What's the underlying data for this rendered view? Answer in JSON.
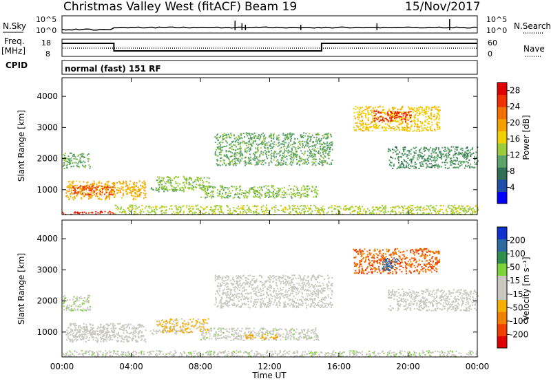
{
  "header": {
    "station": "Christmas Valley West (fitACF)",
    "beam": "Beam 19",
    "date": "15/Nov/2017"
  },
  "left_labels": {
    "nsky": "N.Sky",
    "freq_1": "Freq.",
    "freq_2": "[MHz]",
    "cpid": "CPID"
  },
  "right_labels": {
    "nsearch": "N.Search",
    "nave": "Nave"
  },
  "cpid_value": "normal (fast) 151 RF",
  "noise_ticks": {
    "left_top": "10^5",
    "left_bottom": "10^0",
    "right_top": "10^5",
    "right_bottom": "10^0"
  },
  "freq_ticks": {
    "left_top": "18",
    "left_bottom": "8",
    "right_top": "60",
    "right_bottom": "0"
  },
  "colors": {
    "power": [
      "#0000ff",
      "#1f4ea8",
      "#2f6e55",
      "#5ba36a",
      "#9ccc3c",
      "#f0d000",
      "#f6a000",
      "#f07000",
      "#f03000",
      "#e00000"
    ],
    "velocity": [
      "#e00000",
      "#f04000",
      "#f08000",
      "#f6b000",
      "#c8c8c0",
      "#c8c8c0",
      "#7cd43a",
      "#2e8e4e",
      "#2a6aa0",
      "#1030d0"
    ]
  },
  "chart_data": [
    {
      "type": "heatmap",
      "name": "power",
      "xlabel": "",
      "ylabel": "Slant Range [km]",
      "yticks": [
        "1000",
        "2000",
        "3000",
        "4000"
      ],
      "ylim": [
        200,
        4600
      ],
      "xlim": [
        0,
        24
      ],
      "colorbar": {
        "label": "Power [dB]",
        "ticks": [
          "4",
          "8",
          "12",
          "16",
          "20",
          "24",
          "28"
        ],
        "range": [
          0,
          30
        ]
      },
      "regions": [
        {
          "t0": 0.0,
          "t1": 1.6,
          "r0": 1700,
          "r1": 2200,
          "v": 11
        },
        {
          "t0": 0.2,
          "t1": 4.8,
          "r0": 700,
          "r1": 1300,
          "v": 19
        },
        {
          "t0": 0.6,
          "t1": 3.0,
          "r0": 850,
          "r1": 1150,
          "v": 25
        },
        {
          "t0": 0.0,
          "t1": 3.0,
          "r0": 220,
          "r1": 320,
          "v": 26
        },
        {
          "t0": 3.0,
          "t1": 24.0,
          "r0": 220,
          "r1": 520,
          "v": 14
        },
        {
          "t0": 5.0,
          "t1": 7.0,
          "r0": 950,
          "r1": 1100,
          "v": 12
        },
        {
          "t0": 5.4,
          "t1": 8.5,
          "r0": 1000,
          "r1": 1450,
          "v": 13
        },
        {
          "t0": 8.0,
          "t1": 14.8,
          "r0": 750,
          "r1": 1150,
          "v": 13
        },
        {
          "t0": 8.8,
          "t1": 15.6,
          "r0": 1800,
          "r1": 2850,
          "v": 11
        },
        {
          "t0": 16.8,
          "t1": 21.8,
          "r0": 2900,
          "r1": 3700,
          "v": 17
        },
        {
          "t0": 18.0,
          "t1": 20.2,
          "r0": 3200,
          "r1": 3550,
          "v": 26
        },
        {
          "t0": 18.8,
          "t1": 24.0,
          "r0": 1700,
          "r1": 2400,
          "v": 10
        }
      ]
    },
    {
      "type": "heatmap",
      "name": "velocity",
      "xlabel": "Time UT",
      "ylabel": "Slant Range [km]",
      "xticks": [
        "00:00",
        "04:00",
        "08:00",
        "12:00",
        "16:00",
        "20:00",
        "00:00"
      ],
      "yticks": [
        "1000",
        "2000",
        "3000",
        "4000"
      ],
      "ylim": [
        200,
        4600
      ],
      "xlim": [
        0,
        24
      ],
      "colorbar": {
        "label": "Velocity [m s⁻¹]",
        "ticks": [
          "200",
          "100",
          "50",
          "15",
          "-15",
          "-50",
          "-100",
          "-200"
        ],
        "range": [
          -250,
          250
        ]
      },
      "regions": [
        {
          "t0": 0.0,
          "t1": 1.6,
          "r0": 1700,
          "r1": 2200,
          "v": 40
        },
        {
          "t0": 0.2,
          "t1": 4.8,
          "r0": 700,
          "r1": 1300,
          "v": 20
        },
        {
          "t0": 0.6,
          "t1": 3.0,
          "r0": 850,
          "r1": 1150,
          "v": -5
        },
        {
          "t0": 0.0,
          "t1": 24.0,
          "r0": 220,
          "r1": 420,
          "v": 30
        },
        {
          "t0": 5.0,
          "t1": 7.0,
          "r0": 950,
          "r1": 1100,
          "v": -5
        },
        {
          "t0": 5.4,
          "t1": 8.5,
          "r0": 1000,
          "r1": 1450,
          "v": -60
        },
        {
          "t0": 8.0,
          "t1": 14.8,
          "r0": 750,
          "r1": 1150,
          "v": 25
        },
        {
          "t0": 10.5,
          "t1": 12.5,
          "r0": 800,
          "r1": 950,
          "v": -80
        },
        {
          "t0": 8.8,
          "t1": 15.6,
          "r0": 1800,
          "r1": 2850,
          "v": 0
        },
        {
          "t0": 16.8,
          "t1": 21.8,
          "r0": 2900,
          "r1": 3700,
          "v": -150
        },
        {
          "t0": 18.4,
          "t1": 19.4,
          "r0": 3000,
          "r1": 3400,
          "v": 180
        },
        {
          "t0": 18.8,
          "t1": 24.0,
          "r0": 1700,
          "r1": 2400,
          "v": 0
        }
      ]
    }
  ]
}
